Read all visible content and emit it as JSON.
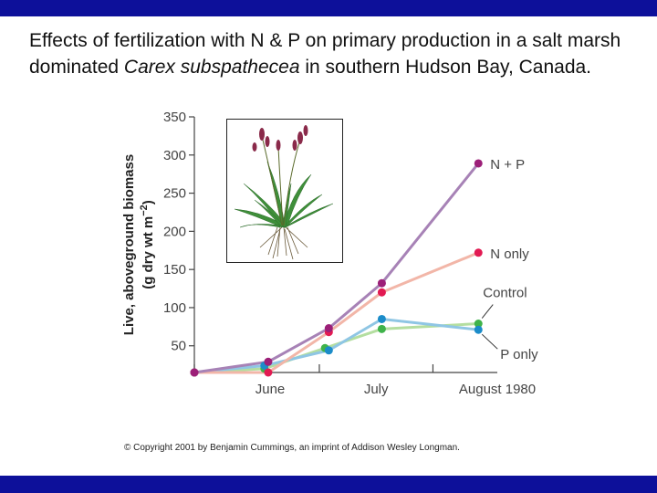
{
  "slide": {
    "title_part1": "Effects of fertilization with N & P on primary production in a salt marsh dominated ",
    "title_species": "Carex subspathecea",
    "title_part2": " in southern Hudson Bay, Canada.",
    "copyright": "© Copyright 2001 by Benjamin Cummings, an imprint of Addison Wesley Longman."
  },
  "colors": {
    "band": "#0d109a"
  },
  "chart_data": {
    "type": "line",
    "title": "",
    "xlabel": "",
    "ylabel_line1": "Live, aboveground biomass",
    "ylabel_line2": "(g dry wt m",
    "ylabel_sup": "−2",
    "ylabel_close": ")",
    "ylim": [
      15,
      350
    ],
    "yticks": [
      50,
      100,
      150,
      200,
      250,
      300,
      350
    ],
    "xlim": [
      0,
      8
    ],
    "x_categories": [
      {
        "label": "June",
        "x": 2.0
      },
      {
        "label": "July",
        "x": 4.8
      },
      {
        "label": "August 1980",
        "x": 8.0
      }
    ],
    "x_separators": [
      0.0,
      3.3,
      6.3
    ],
    "series": [
      {
        "name": "N + P",
        "line_color": "#a782b6",
        "point_color": "#9c1f78",
        "x": [
          0.0,
          1.95,
          3.55,
          4.95,
          7.5
        ],
        "y": [
          15,
          29,
          73,
          132,
          289
        ]
      },
      {
        "name": "N only",
        "line_color": "#f2b6a8",
        "point_color": "#e21a52",
        "x": [
          0.0,
          1.95,
          3.55,
          4.95,
          7.5
        ],
        "y": [
          15,
          15,
          68,
          120,
          172
        ]
      },
      {
        "name": "Control",
        "line_color": "#b4dea0",
        "point_color": "#3fb34a",
        "x": [
          0.0,
          1.85,
          3.45,
          4.95,
          7.5
        ],
        "y": [
          15,
          20,
          47,
          72,
          79
        ]
      },
      {
        "name": "P only",
        "line_color": "#8fc6e4",
        "point_color": "#1b8cc9",
        "x": [
          0.0,
          1.85,
          3.55,
          4.95,
          7.5
        ],
        "y": [
          15,
          24,
          44,
          85,
          71
        ]
      }
    ]
  }
}
